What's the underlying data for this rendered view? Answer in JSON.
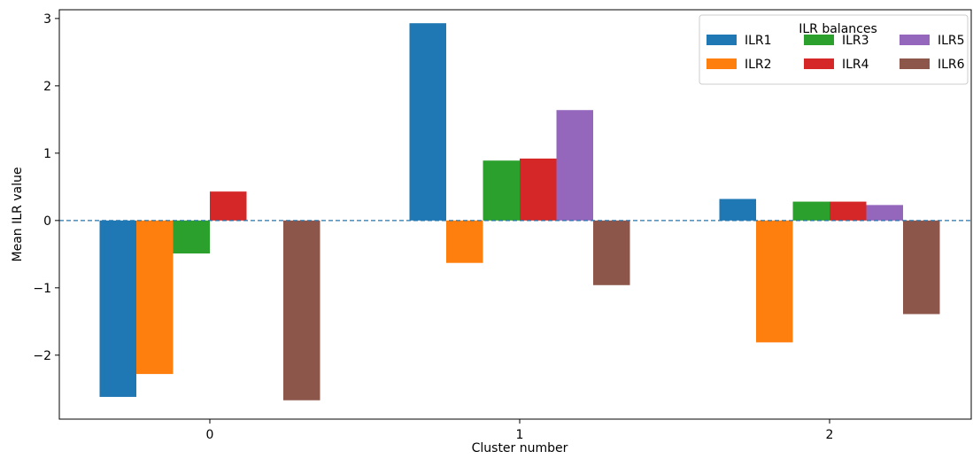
{
  "chart_data": {
    "type": "bar",
    "categories": [
      "0",
      "1",
      "2"
    ],
    "series": [
      {
        "name": "ILR1",
        "color": "#1f77b4",
        "values": [
          -2.62,
          2.93,
          0.32
        ]
      },
      {
        "name": "ILR2",
        "color": "#ff7f0e",
        "values": [
          -2.28,
          -0.63,
          -1.81
        ]
      },
      {
        "name": "ILR3",
        "color": "#2ca02c",
        "values": [
          -0.49,
          0.89,
          0.28
        ]
      },
      {
        "name": "ILR4",
        "color": "#d62728",
        "values": [
          0.43,
          0.92,
          0.28
        ]
      },
      {
        "name": "ILR5",
        "color": "#9467bd",
        "values": [
          0.0,
          1.64,
          0.23
        ]
      },
      {
        "name": "ILR6",
        "color": "#8c564b",
        "values": [
          -2.67,
          -0.96,
          -1.39
        ]
      }
    ],
    "xlabel": "Cluster number",
    "ylabel": "Mean ILR value",
    "ylim": [
      -2.95,
      3.13
    ],
    "yticks": [
      3,
      2,
      1,
      0,
      -1,
      -2
    ],
    "ytick_labels": [
      "3",
      "2",
      "1",
      "0",
      "−1",
      "−2"
    ],
    "reference_line": {
      "y": 0,
      "style": "dashed",
      "color": "#1f77b4"
    },
    "legend": {
      "title": "ILR balances",
      "placement": "top-right",
      "columns": 3
    },
    "grid": false
  }
}
